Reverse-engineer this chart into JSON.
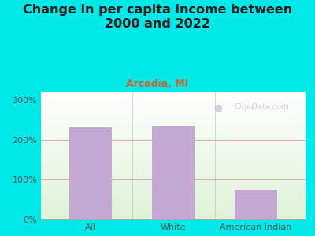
{
  "title": "Change in per capita income between\n2000 and 2022",
  "subtitle": "Arcadia, MI",
  "categories": [
    "All",
    "White",
    "American Indian"
  ],
  "values": [
    231,
    235,
    76
  ],
  "bar_color": "#c4a8d4",
  "outer_bg": "#00e8e8",
  "title_fontsize": 11.5,
  "subtitle_fontsize": 9,
  "yticks": [
    0,
    100,
    200,
    300
  ],
  "ylim": [
    0,
    320
  ],
  "watermark": "City-Data.com",
  "title_color": "#1a1a1a",
  "subtitle_color": "#cc6633",
  "tick_color": "#555555",
  "grid_color": "#dd9999",
  "separator_color": "#aaccaa"
}
